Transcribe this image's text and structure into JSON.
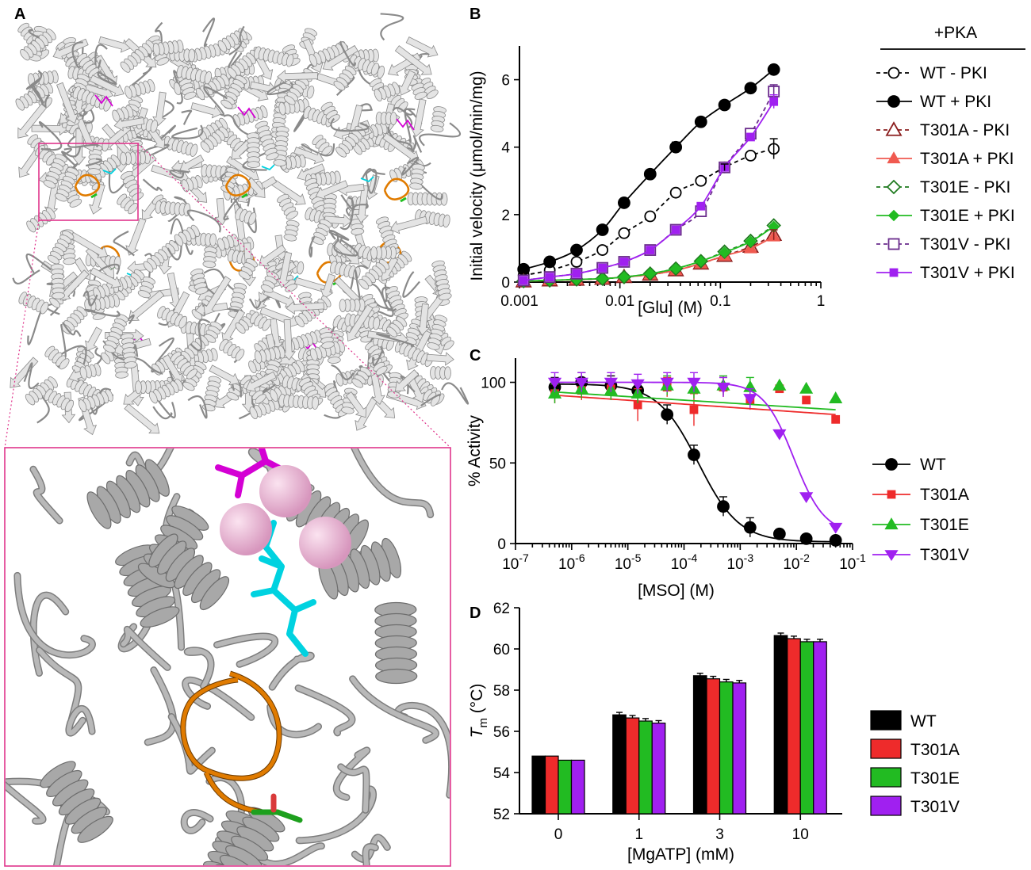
{
  "figure": {
    "panel_letters": [
      "A",
      "B",
      "C",
      "D"
    ],
    "image_panel_a": {
      "name": "glutamine-synthetase-structure",
      "description_visible": false
    },
    "colors": {
      "black": "#000000",
      "darkred": "#8b1e1e",
      "red": "#ee2b2b",
      "lightred": "#f05a50",
      "darkgreen": "#1f7a1f",
      "green": "#22bb22",
      "purple_dark": "#6a2c8c",
      "purple": "#a020f0",
      "orange": "#e07b00",
      "cyan": "#00d2e0",
      "magenta": "#d400d4",
      "pink_sphere": "#f0b0d8",
      "frame": "#e0358c"
    }
  },
  "chart_data": [
    {
      "panel": "B",
      "type": "line",
      "xscale": "log",
      "xlabel": "[Glu] (M)",
      "ylabel": "Initial velocity (μmol/min/mg)",
      "xlim": [
        0.001,
        1
      ],
      "ylim": [
        0,
        7
      ],
      "xticks": [
        0.001,
        0.01,
        0.1,
        1
      ],
      "xticklabels": [
        "0.001",
        "0.01",
        "0.1",
        "1"
      ],
      "yticks": [
        0,
        2,
        4,
        6
      ],
      "yticklabels": [
        "0",
        "2",
        "4",
        "6"
      ],
      "legend_title": "+PKA",
      "legend_position": "right",
      "x": [
        0.0011,
        0.002,
        0.0037,
        0.0067,
        0.011,
        0.02,
        0.036,
        0.064,
        0.11,
        0.2,
        0.34
      ],
      "series": [
        {
          "name": "WT - PKI",
          "marker": "circle-open",
          "dash": true,
          "color": "#000000",
          "values": [
            0.2,
            0.35,
            0.6,
            0.95,
            1.45,
            1.95,
            2.65,
            3.0,
            3.4,
            3.75,
            3.95
          ]
        },
        {
          "name": "WT + PKI",
          "marker": "circle-filled",
          "dash": false,
          "color": "#000000",
          "values": [
            0.38,
            0.6,
            0.95,
            1.55,
            2.35,
            3.2,
            4.0,
            4.75,
            5.25,
            5.75,
            6.3
          ]
        },
        {
          "name": "T301A - PKI",
          "marker": "triangle-open",
          "dash": true,
          "color": "#8b1e1e",
          "values": [
            0.02,
            0.05,
            0.07,
            0.1,
            0.15,
            0.22,
            0.35,
            0.55,
            0.78,
            1.05,
            1.4
          ]
        },
        {
          "name": "T301A + PKI",
          "marker": "triangle-filled",
          "dash": false,
          "color": "#f05a50",
          "values": [
            0.02,
            0.05,
            0.07,
            0.1,
            0.15,
            0.22,
            0.35,
            0.55,
            0.78,
            1.0,
            1.35
          ]
        },
        {
          "name": "T301E - PKI",
          "marker": "diamond-open",
          "dash": true,
          "color": "#1f7a1f",
          "values": [
            0.03,
            0.05,
            0.08,
            0.1,
            0.15,
            0.25,
            0.4,
            0.62,
            0.9,
            1.22,
            1.68
          ]
        },
        {
          "name": "T301E + PKI",
          "marker": "diamond-filled",
          "dash": false,
          "color": "#22bb22",
          "values": [
            0.03,
            0.05,
            0.08,
            0.1,
            0.15,
            0.25,
            0.4,
            0.62,
            0.88,
            1.2,
            1.65
          ]
        },
        {
          "name": "T301V - PKI",
          "marker": "square-open",
          "dash": true,
          "color": "#6a2c8c",
          "values": [
            0.05,
            0.15,
            0.25,
            0.42,
            0.6,
            0.95,
            1.55,
            2.1,
            3.4,
            4.4,
            5.65
          ]
        },
        {
          "name": "T301V + PKI",
          "marker": "square-filled",
          "dash": false,
          "color": "#a020f0",
          "values": [
            0.05,
            0.15,
            0.25,
            0.42,
            0.6,
            0.95,
            1.55,
            2.25,
            3.4,
            4.3,
            5.35
          ]
        }
      ]
    },
    {
      "panel": "C",
      "type": "scatter",
      "xscale": "log",
      "xlabel": "[MSO] (M)",
      "ylabel": "% Activity",
      "xlim": [
        1e-07,
        0.1
      ],
      "ylim": [
        0,
        115
      ],
      "xticks": [
        1e-07,
        1e-06,
        1e-05,
        0.0001,
        0.001,
        0.01,
        0.1
      ],
      "xticklabels": [
        [
          "10",
          "-7"
        ],
        [
          "10",
          "-6"
        ],
        [
          "10",
          "-5"
        ],
        [
          "10",
          "-4"
        ],
        [
          "10",
          "-3"
        ],
        [
          "10",
          "-2"
        ],
        [
          "10",
          "-1"
        ]
      ],
      "yticks": [
        0,
        50,
        100
      ],
      "yticklabels": [
        "0",
        "50",
        "100"
      ],
      "legend_position": "right",
      "x": [
        5e-07,
        1.5e-06,
        5e-06,
        1.5e-05,
        5e-05,
        0.00015,
        0.0005,
        0.0015,
        0.005,
        0.015,
        0.05
      ],
      "series": [
        {
          "name": "WT",
          "marker": "circle-filled",
          "color": "#000000",
          "values": [
            97,
            100,
            98,
            95,
            80,
            55,
            23,
            10,
            6,
            3,
            2
          ]
        },
        {
          "name": "T301A",
          "marker": "square-filled",
          "color": "#ee2b2b",
          "values": [
            93,
            95,
            96,
            86,
            97,
            83,
            97,
            89,
            96,
            89,
            77
          ]
        },
        {
          "name": "T301E",
          "marker": "triangle-filled",
          "color": "#22bb22",
          "values": [
            93,
            96,
            95,
            93,
            98,
            96,
            98,
            97,
            98,
            96,
            90
          ]
        },
        {
          "name": "T301V",
          "marker": "triangle-down-filled",
          "color": "#a020f0",
          "values": [
            100,
            100,
            100,
            99,
            100,
            100,
            97,
            90,
            68,
            29,
            10
          ]
        }
      ]
    },
    {
      "panel": "D",
      "type": "bar",
      "xlabel": "[MgATP] (mM)",
      "ylabel_main": "T",
      "ylabel_sub": "m",
      "ylabel_unit": " (°C)",
      "categories": [
        "0",
        "1",
        "3",
        "10"
      ],
      "ylim": [
        52,
        62
      ],
      "yticks": [
        52,
        54,
        56,
        58,
        60,
        62
      ],
      "yticklabels": [
        "52",
        "54",
        "56",
        "58",
        "60",
        "62"
      ],
      "legend_position": "right",
      "series": [
        {
          "name": "WT",
          "color": "#000000",
          "values": [
            54.8,
            56.8,
            58.7,
            60.65
          ]
        },
        {
          "name": "T301A",
          "color": "#ee2b2b",
          "values": [
            54.8,
            56.65,
            58.55,
            60.5
          ]
        },
        {
          "name": "T301E",
          "color": "#22bb22",
          "values": [
            54.6,
            56.5,
            58.4,
            60.35
          ]
        },
        {
          "name": "T301V",
          "color": "#a020f0",
          "values": [
            54.6,
            56.4,
            58.35,
            60.35
          ]
        }
      ]
    }
  ]
}
